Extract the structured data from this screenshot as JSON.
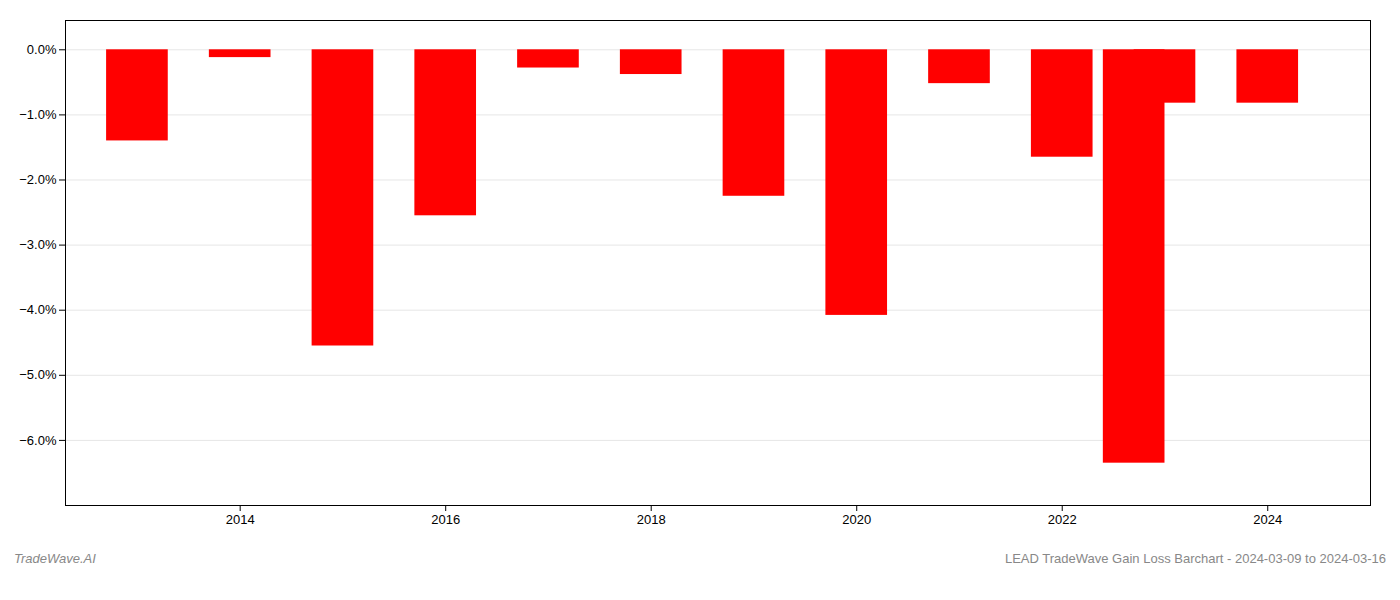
{
  "chart_data": {
    "type": "bar",
    "x": [
      2013,
      2014,
      2015,
      2016,
      2017,
      2018,
      2019,
      2020,
      2021,
      2022,
      2022.7,
      2023,
      2024
    ],
    "values": [
      -1.4,
      -0.12,
      -4.55,
      -2.55,
      -0.28,
      -0.38,
      -2.25,
      -4.08,
      -0.52,
      -1.65,
      -6.35,
      -0.82,
      -0.82
    ],
    "color": "#ff0000",
    "xlim": [
      2012.3,
      2025.0
    ],
    "xticks": [
      2014,
      2016,
      2018,
      2020,
      2022,
      2024
    ],
    "ylim": [
      -7.0,
      0.45
    ],
    "yticks": [
      {
        "value": 0.0,
        "label": "0.0%"
      },
      {
        "value": -1.0,
        "label": "−1.0%"
      },
      {
        "value": -2.0,
        "label": "−2.0%"
      },
      {
        "value": -3.0,
        "label": "−3.0%"
      },
      {
        "value": -4.0,
        "label": "−4.0%"
      },
      {
        "value": -5.0,
        "label": "−5.0%"
      },
      {
        "value": -6.0,
        "label": "−6.0%"
      }
    ],
    "grid": true,
    "annotations": [
      "TradeWave.AI",
      "LEAD TradeWave Gain Loss Barchart - 2024-03-09 to 2024-03-16"
    ]
  }
}
